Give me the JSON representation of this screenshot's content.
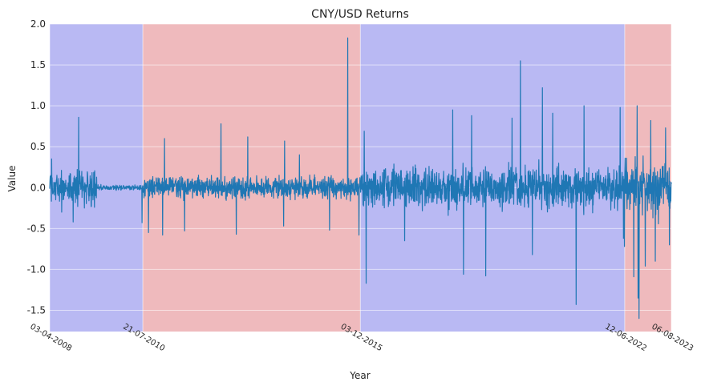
{
  "chart_data": {
    "type": "line",
    "title": "CNY/USD Returns",
    "xlabel": "Year",
    "ylabel": "Value",
    "ylim": [
      -1.76,
      2.0
    ],
    "yticks": [
      -1.5,
      -1.0,
      -0.5,
      0.0,
      0.5,
      1.0,
      1.5,
      2.0
    ],
    "grid": true,
    "x_range": [
      "2008-04-03",
      "2023-08-06"
    ],
    "xtick_labels": [
      {
        "date": "2008-04-03",
        "label": "03-04-2008"
      },
      {
        "date": "2010-07-21",
        "label": "21-07-2010"
      },
      {
        "date": "2015-12-03",
        "label": "03-12-2015"
      },
      {
        "date": "2022-06-12",
        "label": "12-06-2022"
      },
      {
        "date": "2023-08-06",
        "label": "06-08-2023"
      }
    ],
    "regimes": [
      {
        "start": "2008-04-03",
        "end": "2010-07-21",
        "color": "#b9b9f3"
      },
      {
        "start": "2010-07-21",
        "end": "2015-12-03",
        "color": "#efbabd"
      },
      {
        "start": "2015-12-03",
        "end": "2022-06-12",
        "color": "#b9b9f3"
      },
      {
        "start": "2022-06-12",
        "end": "2023-08-06",
        "color": "#efbabd"
      }
    ],
    "series": [
      {
        "color": "#1f77b4",
        "segments": [
          {
            "start": "2008-04-03",
            "end": "2009-06-01",
            "amplitude": 0.18
          },
          {
            "start": "2009-06-01",
            "end": "2010-07-21",
            "amplitude": 0.03
          },
          {
            "start": "2010-07-21",
            "end": "2015-12-03",
            "amplitude": 0.12
          },
          {
            "start": "2015-12-03",
            "end": "2022-06-12",
            "amplitude": 0.22
          },
          {
            "start": "2022-06-12",
            "end": "2023-08-06",
            "amplitude": 0.3
          }
        ],
        "spikes": [
          {
            "x": "2008-04-20",
            "y": 0.35
          },
          {
            "x": "2008-07-20",
            "y": -0.3
          },
          {
            "x": "2008-11-01",
            "y": -0.42
          },
          {
            "x": "2008-12-20",
            "y": 0.86
          },
          {
            "x": "2009-02-10",
            "y": -0.25
          },
          {
            "x": "2010-07-15",
            "y": -0.43
          },
          {
            "x": "2010-09-10",
            "y": -0.55
          },
          {
            "x": "2011-02-01",
            "y": 0.6
          },
          {
            "x": "2011-01-15",
            "y": -0.58
          },
          {
            "x": "2011-08-01",
            "y": -0.53
          },
          {
            "x": "2012-06-25",
            "y": 0.78
          },
          {
            "x": "2012-11-10",
            "y": -0.57
          },
          {
            "x": "2013-02-20",
            "y": 0.62
          },
          {
            "x": "2014-01-20",
            "y": 0.57
          },
          {
            "x": "2014-01-10",
            "y": -0.47
          },
          {
            "x": "2014-06-01",
            "y": 0.4
          },
          {
            "x": "2015-03-01",
            "y": -0.52
          },
          {
            "x": "2015-08-11",
            "y": 1.83
          },
          {
            "x": "2015-11-20",
            "y": -0.58
          },
          {
            "x": "2016-01-07",
            "y": 0.69
          },
          {
            "x": "2016-01-25",
            "y": -1.17
          },
          {
            "x": "2017-01-05",
            "y": -0.65
          },
          {
            "x": "2018-03-15",
            "y": 0.95
          },
          {
            "x": "2018-06-20",
            "y": -1.06
          },
          {
            "x": "2018-09-01",
            "y": 0.88
          },
          {
            "x": "2019-01-05",
            "y": -1.08
          },
          {
            "x": "2019-09-01",
            "y": 0.85
          },
          {
            "x": "2019-11-15",
            "y": 1.55
          },
          {
            "x": "2020-03-01",
            "y": -0.82
          },
          {
            "x": "2020-06-01",
            "y": 1.22
          },
          {
            "x": "2020-09-01",
            "y": 0.91
          },
          {
            "x": "2021-04-01",
            "y": -1.43
          },
          {
            "x": "2021-06-10",
            "y": 1.0
          },
          {
            "x": "2022-05-01",
            "y": 0.98
          },
          {
            "x": "2022-06-01",
            "y": -0.62
          },
          {
            "x": "2022-06-10",
            "y": -0.72
          },
          {
            "x": "2022-09-01",
            "y": -1.09
          },
          {
            "x": "2022-10-01",
            "y": 1.0
          },
          {
            "x": "2022-10-10",
            "y": -1.35
          },
          {
            "x": "2022-10-20",
            "y": -1.6
          },
          {
            "x": "2022-12-15",
            "y": -0.96
          },
          {
            "x": "2023-02-01",
            "y": 0.82
          },
          {
            "x": "2023-03-15",
            "y": -0.9
          },
          {
            "x": "2023-06-15",
            "y": 0.73
          },
          {
            "x": "2023-07-20",
            "y": -0.7
          }
        ]
      }
    ]
  }
}
